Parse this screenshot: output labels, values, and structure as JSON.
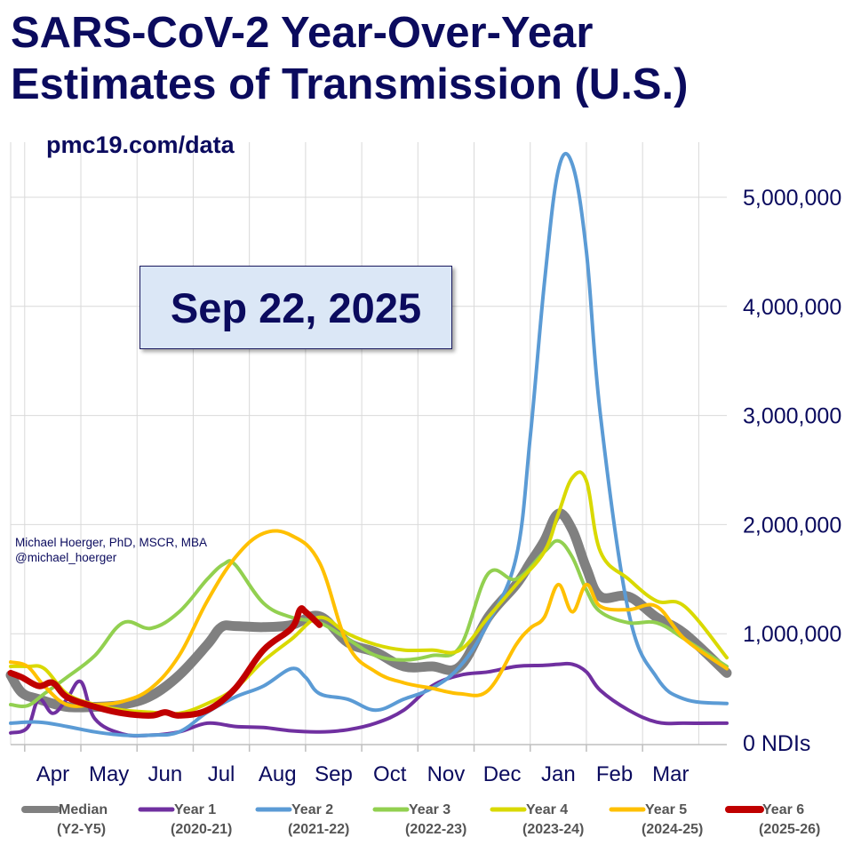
{
  "title": {
    "line1": "SARS-CoV-2 Year-Over-Year",
    "line2": "Estimates of Transmission (U.S.)"
  },
  "subtitle": "pmc19.com/data",
  "date_box": "Sep 22, 2025",
  "credit": {
    "line1": "Michael Hoerger, PhD, MSCR, MBA",
    "line2": "@michael_hoerger"
  },
  "chart_data": {
    "type": "line",
    "ylim": [
      0,
      5500000
    ],
    "yticks": [
      0,
      1000000,
      2000000,
      3000000,
      4000000,
      5000000
    ],
    "ytick_labels": [
      "0 NDIs",
      "1,000,000",
      "2,000,000",
      "3,000,000",
      "4,000,000",
      "5,000,000"
    ],
    "y_axis_position": "right",
    "x_months": [
      "Apr",
      "May",
      "Jun",
      "Jul",
      "Aug",
      "Sep",
      "Oct",
      "Nov",
      "Dec",
      "Jan",
      "Feb",
      "Mar"
    ],
    "x_range": [
      0,
      12.75
    ],
    "grid": true,
    "legend_placement": "bottom",
    "series": [
      {
        "name": "Median",
        "period": "(Y2-Y5)",
        "color": "#808080",
        "width": 11,
        "x": [
          0,
          0.2,
          0.5,
          1,
          1.5,
          2,
          2.5,
          3,
          3.5,
          3.75,
          4,
          4.5,
          5,
          5.5,
          6,
          6.5,
          7,
          7.5,
          8,
          8.5,
          9,
          9.25,
          9.5,
          9.75,
          10,
          10.25,
          10.5,
          11,
          11.5,
          12,
          12.75
        ],
        "y": [
          620000,
          460000,
          400000,
          330000,
          330000,
          350000,
          430000,
          620000,
          900000,
          1060000,
          1070000,
          1060000,
          1080000,
          1160000,
          920000,
          830000,
          700000,
          700000,
          700000,
          1150000,
          1450000,
          1650000,
          1850000,
          2100000,
          1950000,
          1600000,
          1340000,
          1340000,
          1150000,
          1000000,
          640000
        ]
      },
      {
        "name": "Year 1",
        "period": "(2020-21)",
        "color": "#7030a0",
        "width": 4,
        "x": [
          0,
          0.3,
          0.5,
          0.75,
          1,
          1.25,
          1.5,
          2,
          2.5,
          3,
          3.5,
          4,
          4.5,
          5,
          5.5,
          6,
          6.5,
          7,
          7.5,
          8,
          8.5,
          9,
          9.5,
          9.75,
          10,
          10.25,
          10.5,
          11,
          11.5,
          12,
          12.75
        ],
        "y": [
          90000,
          140000,
          400000,
          270000,
          400000,
          560000,
          220000,
          80000,
          70000,
          100000,
          180000,
          150000,
          140000,
          110000,
          100000,
          120000,
          180000,
          300000,
          520000,
          620000,
          650000,
          700000,
          710000,
          720000,
          720000,
          650000,
          480000,
          300000,
          190000,
          180000,
          180000
        ]
      },
      {
        "name": "Year 2",
        "period": "(2021-22)",
        "color": "#5b9bd5",
        "width": 4,
        "x": [
          0,
          0.5,
          1,
          1.5,
          2,
          2.5,
          3,
          3.5,
          4,
          4.5,
          5,
          5.25,
          5.5,
          6,
          6.5,
          7,
          7.5,
          8,
          8.5,
          9,
          9.25,
          9.5,
          9.75,
          10,
          10.25,
          10.5,
          11,
          11.5,
          12,
          12.75
        ],
        "y": [
          180000,
          190000,
          150000,
          100000,
          70000,
          70000,
          100000,
          280000,
          420000,
          520000,
          680000,
          600000,
          450000,
          400000,
          300000,
          400000,
          500000,
          700000,
          1100000,
          1700000,
          2800000,
          4200000,
          5250000,
          5300000,
          4500000,
          3000000,
          1200000,
          600000,
          400000,
          360000
        ]
      },
      {
        "name": "Year 3",
        "period": "(2022-23)",
        "color": "#92d050",
        "width": 4,
        "x": [
          0,
          0.3,
          0.6,
          1,
          1.5,
          2,
          2.5,
          3,
          3.5,
          3.8,
          4,
          4.5,
          5,
          5.5,
          6,
          6.5,
          7,
          7.5,
          8,
          8.5,
          9,
          9.5,
          9.75,
          10,
          10.25,
          10.5,
          11,
          11.5,
          12,
          12.75
        ],
        "y": [
          350000,
          340000,
          450000,
          600000,
          800000,
          1100000,
          1050000,
          1200000,
          1500000,
          1640000,
          1630000,
          1280000,
          1150000,
          1100000,
          950000,
          800000,
          760000,
          800000,
          880000,
          1550000,
          1500000,
          1750000,
          1850000,
          1700000,
          1400000,
          1200000,
          1100000,
          1100000,
          950000,
          700000
        ]
      },
      {
        "name": "Year 4",
        "period": "(2023-24)",
        "color": "#d9d900",
        "width": 4,
        "x": [
          0,
          0.3,
          0.6,
          1,
          1.5,
          2,
          2.5,
          3,
          3.5,
          4,
          4.5,
          5,
          5.5,
          6,
          6.5,
          7,
          7.5,
          8,
          8.5,
          9,
          9.5,
          9.75,
          10,
          10.25,
          10.5,
          11,
          11.5,
          12,
          12.75
        ],
        "y": [
          700000,
          700000,
          680000,
          450000,
          350000,
          300000,
          280000,
          270000,
          360000,
          500000,
          750000,
          950000,
          1150000,
          1000000,
          900000,
          850000,
          850000,
          850000,
          1150000,
          1450000,
          1750000,
          2100000,
          2430000,
          2400000,
          1750000,
          1500000,
          1300000,
          1250000,
          780000
        ]
      },
      {
        "name": "Year 5",
        "period": "(2024-25)",
        "color": "#ffc000",
        "width": 4,
        "x": [
          0,
          0.3,
          0.6,
          1,
          1.5,
          2,
          2.5,
          3,
          3.5,
          4,
          4.5,
          5,
          5.5,
          6,
          6.5,
          7,
          7.5,
          8,
          8.5,
          9,
          9.25,
          9.5,
          9.75,
          10,
          10.25,
          10.5,
          11,
          11.5,
          12,
          12.75
        ],
        "y": [
          740000,
          700000,
          520000,
          350000,
          350000,
          380000,
          500000,
          800000,
          1300000,
          1700000,
          1920000,
          1900000,
          1650000,
          900000,
          650000,
          550000,
          500000,
          450000,
          480000,
          900000,
          1050000,
          1150000,
          1450000,
          1200000,
          1450000,
          1250000,
          1220000,
          1250000,
          950000,
          680000
        ]
      },
      {
        "name": "Year 6",
        "period": "(2025-26)",
        "color": "#c00000",
        "width": 7,
        "x": [
          0,
          0.2,
          0.5,
          0.75,
          1,
          1.5,
          2,
          2.5,
          2.75,
          3,
          3.5,
          4,
          4.5,
          5,
          5.15,
          5.25,
          5.5
        ],
        "y": [
          640000,
          600000,
          520000,
          550000,
          420000,
          330000,
          270000,
          250000,
          280000,
          250000,
          300000,
          500000,
          850000,
          1050000,
          1220000,
          1200000,
          1080000
        ]
      }
    ]
  }
}
